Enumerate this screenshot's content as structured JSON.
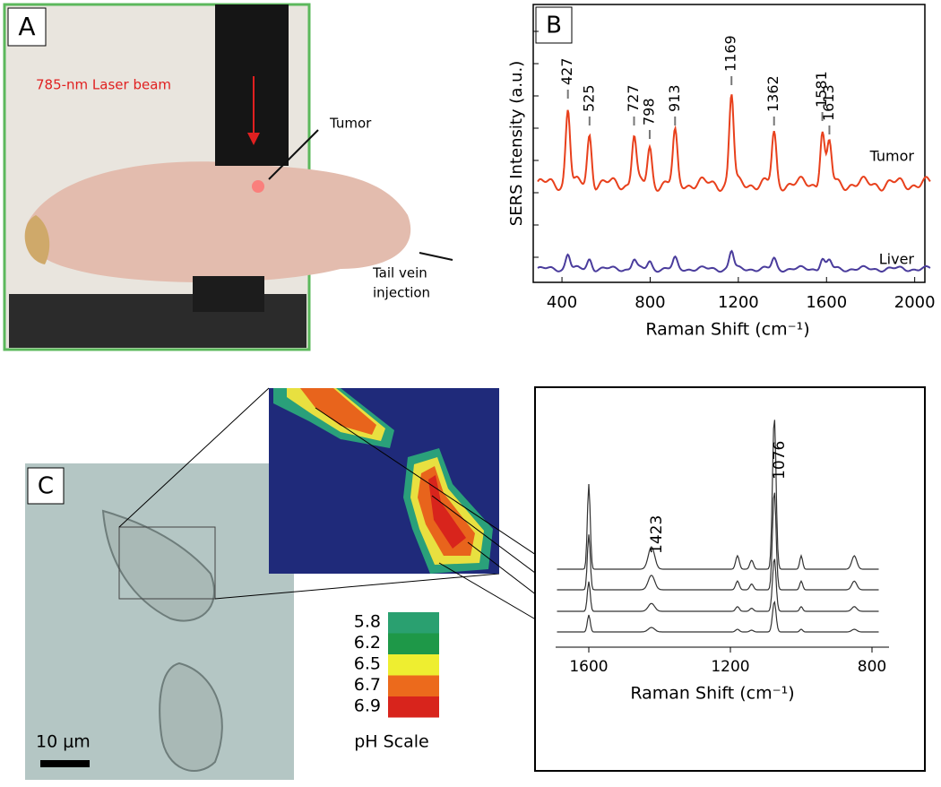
{
  "panel_a": {
    "label": "A",
    "laser": "785-nm Laser beam",
    "tumor": "Tumor",
    "injection": [
      "Tail vein",
      "injection"
    ]
  },
  "panel_b": {
    "label": "B",
    "y_label": "SERS Intensity (a.u.)",
    "x_label": "Raman Shift (cm⁻¹)",
    "xticks": [
      400,
      800,
      1200,
      1600,
      2000
    ],
    "peaks": [
      427,
      525,
      727,
      798,
      913,
      1169,
      1362,
      1581,
      1613
    ],
    "series": [
      "Tumor",
      "Liver"
    ]
  },
  "panel_c": {
    "label": "C",
    "scale_bar": "10 μm",
    "ph_title": "pH Scale",
    "ph_values": [
      5.8,
      6.2,
      6.5,
      6.7,
      6.9
    ],
    "peaks": [
      1423,
      1076
    ],
    "xticks": [
      1600,
      1200,
      800
    ],
    "x_label": "Raman Shift (cm⁻¹)"
  }
}
